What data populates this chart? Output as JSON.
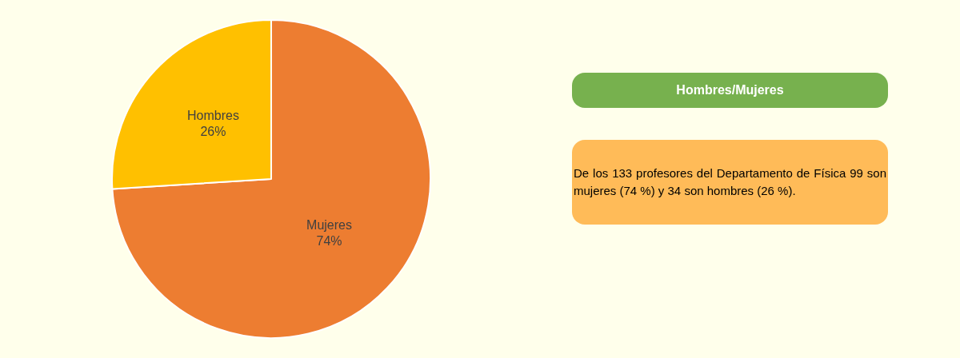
{
  "chart_data": {
    "type": "pie",
    "title": "Hombres/Mujeres",
    "categories": [
      "Mujeres",
      "Hombres"
    ],
    "values": [
      74,
      26
    ],
    "colors": [
      "#ed7d31",
      "#ffc000"
    ],
    "value_labels": [
      "74%",
      "26%"
    ],
    "legend": false,
    "annotations": [
      "De los 133 profesores del Departamento de Física 99 son mujeres (74 %) y 34 son hombres (26 %)."
    ]
  }
}
